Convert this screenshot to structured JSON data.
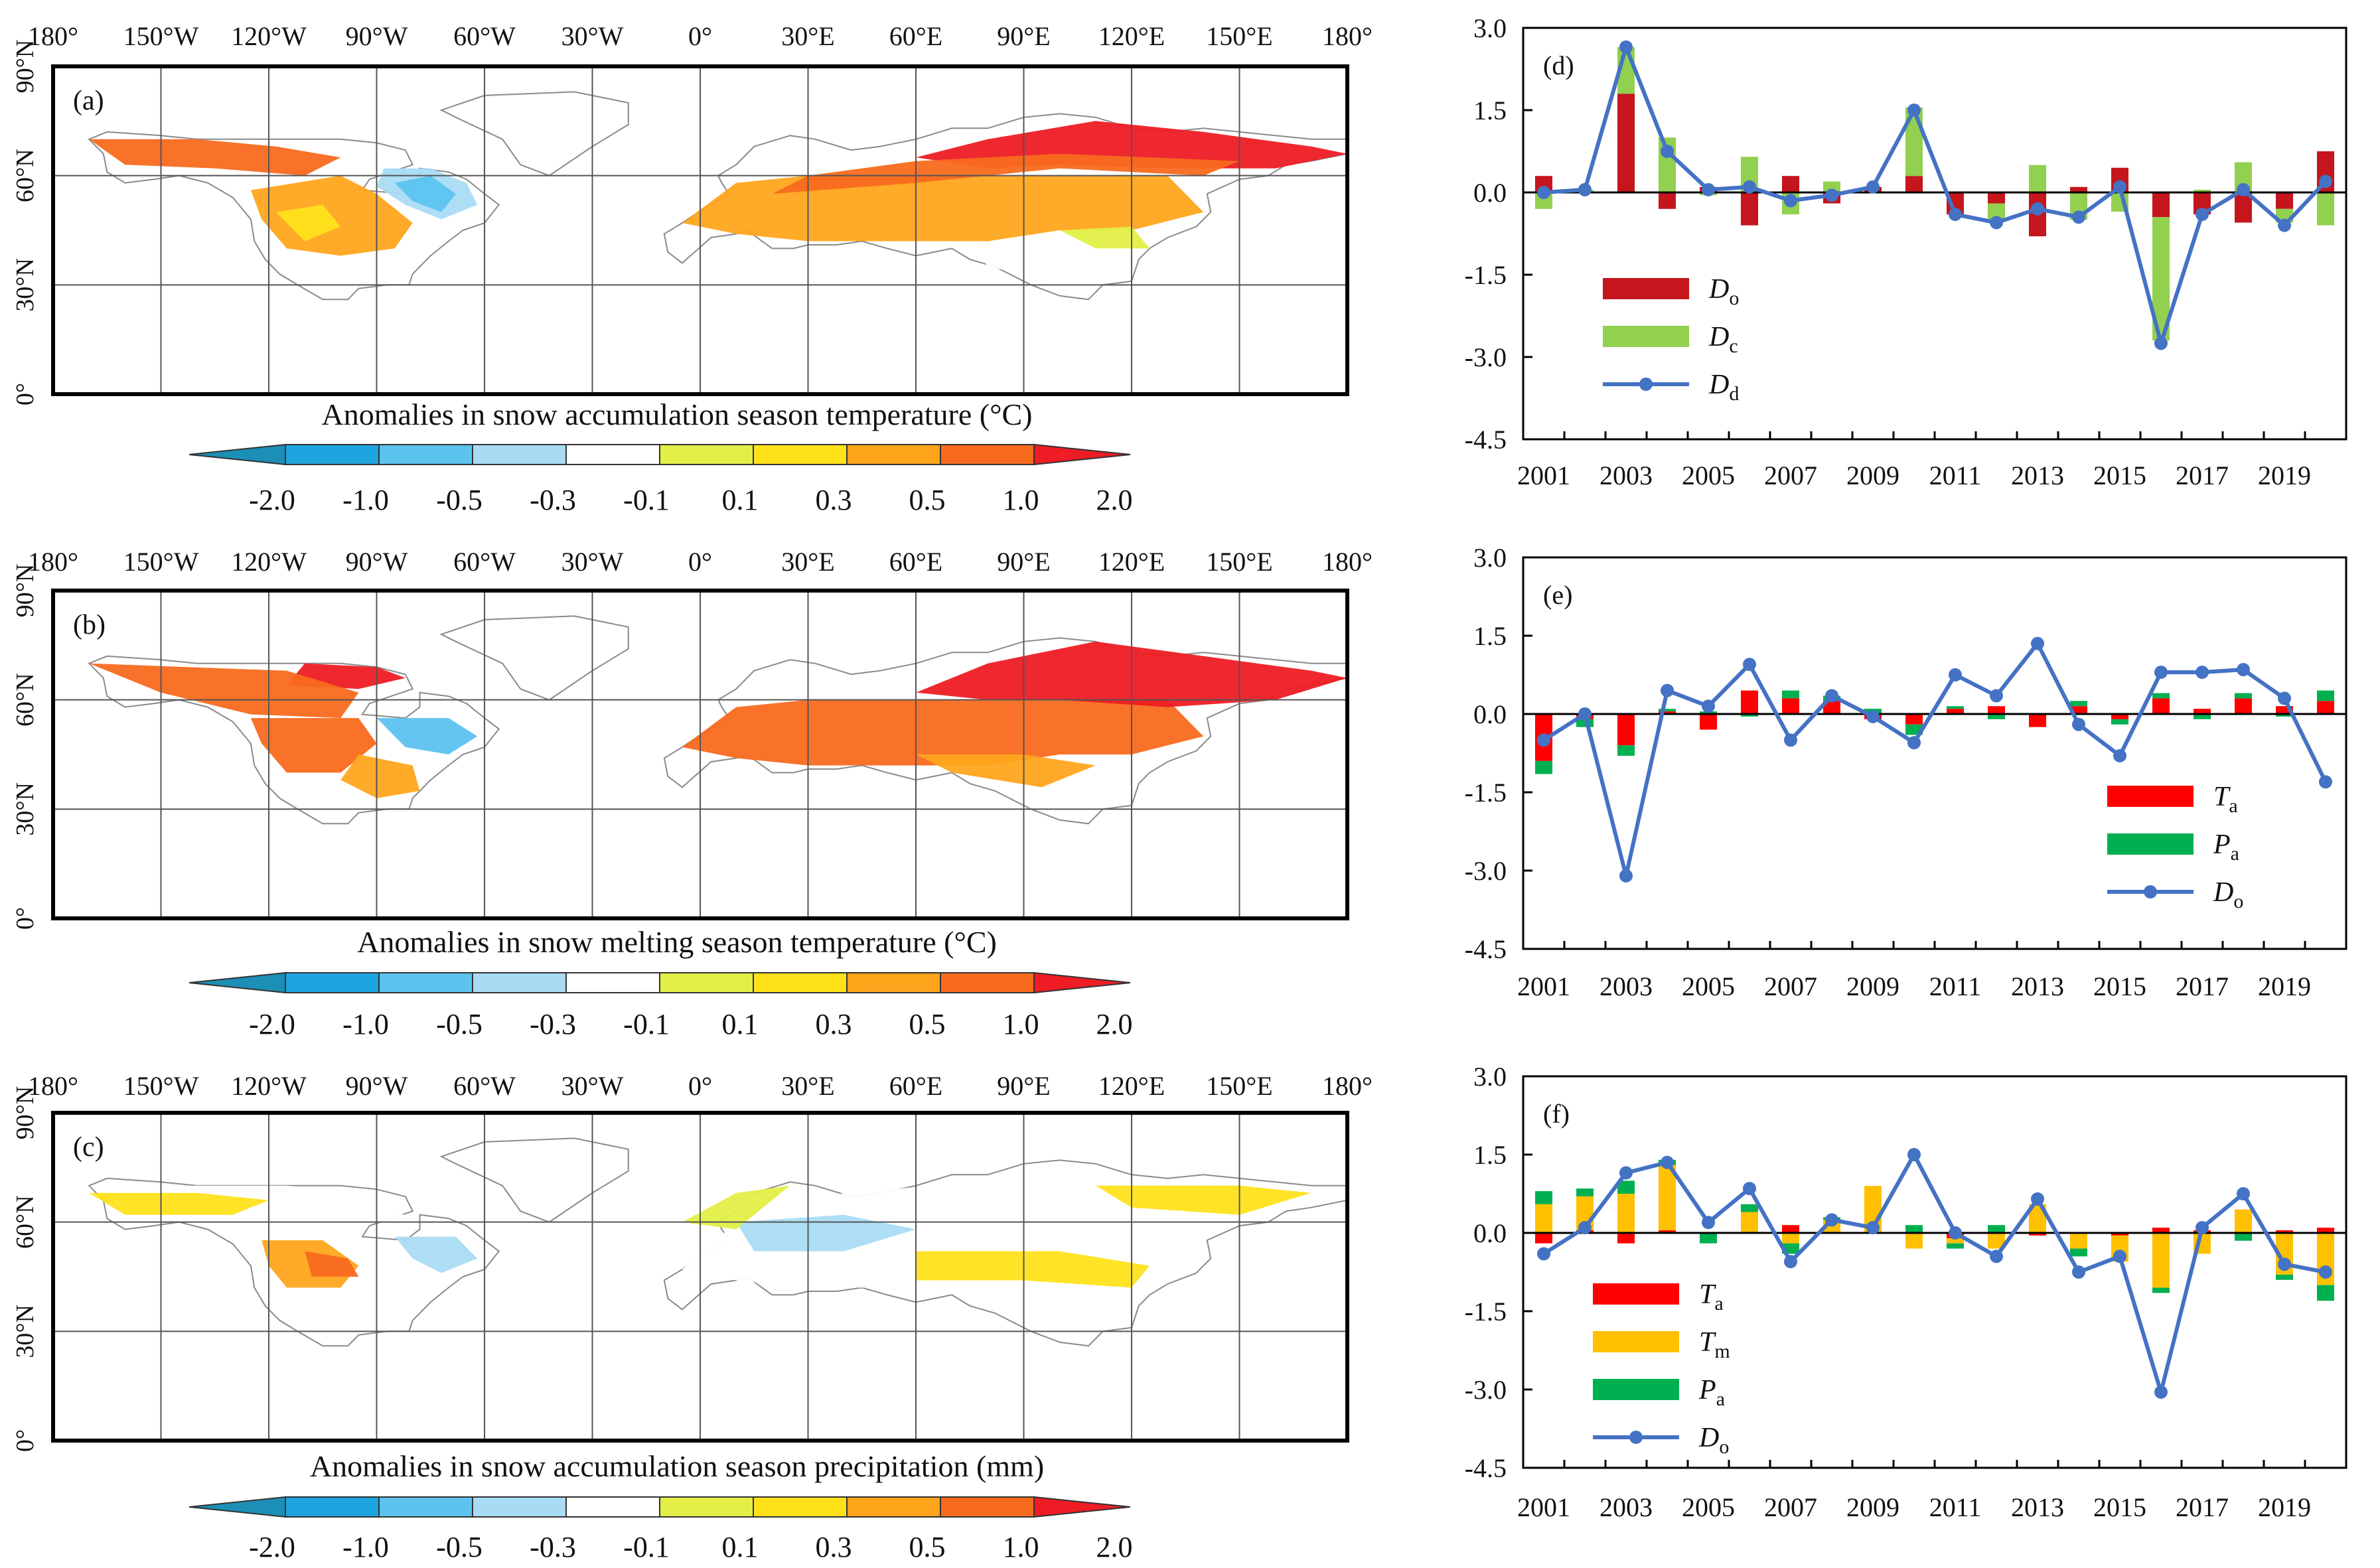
{
  "colors": {
    "temp_scale": [
      "#1b8fb5",
      "#1ea5e0",
      "#5cc3ef",
      "#a9dcf4",
      "#ffffff",
      "#e3ef47",
      "#ffe11a",
      "#ffa51c",
      "#f86a1d",
      "#ee1c24"
    ],
    "ocean": "#ffffff",
    "land_edge": "#8a8a8a",
    "d_o_bar": "#c4161c",
    "d_c_bar": "#92d050",
    "line": "#4472c4",
    "ta_bar": "#ff0000",
    "pa_bar": "#00b050",
    "tm_bar": "#ffc000"
  },
  "maps": [
    {
      "panel": "(a)",
      "title": "Anomalies in snow accumulation season temperature (°C)",
      "lon_labels": [
        "180°",
        "150°W",
        "120°W",
        "90°W",
        "60°W",
        "30°W",
        "0°",
        "30°E",
        "60°E",
        "90°E",
        "120°E",
        "150°E",
        "180°"
      ],
      "lat_labels": [
        "90°N",
        "60°N",
        "30°N",
        "0°"
      ],
      "colorbar_labels": [
        "-2.0",
        "-1.0",
        "-0.5",
        "-0.3",
        "-0.1",
        "0.1",
        "0.3",
        "0.5",
        "1.0",
        "2.0"
      ]
    },
    {
      "panel": "(b)",
      "title": "Anomalies in snow melting season temperature (°C)",
      "lon_labels": [
        "180°",
        "150°W",
        "120°W",
        "90°W",
        "60°W",
        "30°W",
        "0°",
        "30°E",
        "60°E",
        "90°E",
        "120°E",
        "150°E",
        "180°"
      ],
      "lat_labels": [
        "90°N",
        "60°N",
        "30°N",
        "0°"
      ],
      "colorbar_labels": [
        "-2.0",
        "-1.0",
        "-0.5",
        "-0.3",
        "-0.1",
        "0.1",
        "0.3",
        "0.5",
        "1.0",
        "2.0"
      ]
    },
    {
      "panel": "(c)",
      "title": "Anomalies in snow accumulation season precipitation (mm)",
      "lon_labels": [
        "180°",
        "150°W",
        "120°W",
        "90°W",
        "60°W",
        "30°W",
        "0°",
        "30°E",
        "60°E",
        "90°E",
        "120°E",
        "150°E",
        "180°"
      ],
      "lat_labels": [
        "90°N",
        "60°N",
        "30°N",
        "0°"
      ],
      "colorbar_labels": [
        "-2.0",
        "-1.0",
        "-0.5",
        "-0.3",
        "-0.1",
        "0.1",
        "0.3",
        "0.5",
        "1.0",
        "2.0"
      ]
    }
  ],
  "chart_data": [
    {
      "panel": "(d)",
      "type": "bar",
      "x": [
        2001,
        2002,
        2003,
        2004,
        2005,
        2006,
        2007,
        2008,
        2009,
        2010,
        2011,
        2012,
        2013,
        2014,
        2015,
        2016,
        2017,
        2018,
        2019,
        2020
      ],
      "x_tick_labels": [
        "2001",
        "2003",
        "2005",
        "2007",
        "2009",
        "2011",
        "2013",
        "2015",
        "2017",
        "2019"
      ],
      "y_tick_labels": [
        "3.0",
        "1.5",
        "0.0",
        "-1.5",
        "-3.0",
        "-4.5"
      ],
      "ylim": [
        -4.5,
        3.0
      ],
      "series": [
        {
          "name": "D",
          "sub": "o",
          "kind": "bar",
          "color_key": "d_o_bar",
          "values": [
            0.3,
            0.0,
            1.8,
            -0.3,
            0.1,
            -0.6,
            0.3,
            -0.2,
            0.1,
            0.3,
            -0.4,
            -0.2,
            -0.8,
            0.1,
            0.45,
            -0.45,
            -0.4,
            -0.55,
            -0.3,
            0.75
          ]
        },
        {
          "name": "D",
          "sub": "c",
          "kind": "bar",
          "color_key": "d_c_bar",
          "values": [
            -0.3,
            0.05,
            0.85,
            1.0,
            -0.05,
            0.65,
            -0.4,
            0.2,
            0.0,
            1.25,
            0.0,
            -0.3,
            0.5,
            -0.5,
            -0.35,
            -2.25,
            0.05,
            0.55,
            -0.25,
            -0.6
          ]
        },
        {
          "name": "D",
          "sub": "d",
          "kind": "line",
          "color_key": "line",
          "values": [
            0.0,
            0.05,
            2.65,
            0.75,
            0.05,
            0.1,
            -0.15,
            -0.05,
            0.1,
            1.5,
            -0.4,
            -0.55,
            -0.3,
            -0.45,
            0.1,
            -2.75,
            -0.4,
            0.05,
            -0.6,
            0.2
          ]
        }
      ],
      "legend": "bottom-left"
    },
    {
      "panel": "(e)",
      "type": "bar",
      "x": [
        2001,
        2002,
        2003,
        2004,
        2005,
        2006,
        2007,
        2008,
        2009,
        2010,
        2011,
        2012,
        2013,
        2014,
        2015,
        2016,
        2017,
        2018,
        2019,
        2020
      ],
      "x_tick_labels": [
        "2001",
        "2003",
        "2005",
        "2007",
        "2009",
        "2011",
        "2013",
        "2015",
        "2017",
        "2019"
      ],
      "y_tick_labels": [
        "3.0",
        "1.5",
        "0.0",
        "-1.5",
        "-3.0",
        "-4.5"
      ],
      "ylim": [
        -4.5,
        3.0
      ],
      "series": [
        {
          "name": "T",
          "sub": "a",
          "kind": "bar",
          "color_key": "ta_bar",
          "values": [
            -0.9,
            -0.1,
            -0.6,
            0.05,
            -0.3,
            0.45,
            0.3,
            0.25,
            -0.1,
            -0.2,
            0.1,
            0.15,
            -0.25,
            0.15,
            -0.1,
            0.3,
            0.1,
            0.3,
            0.15,
            0.25
          ]
        },
        {
          "name": "P",
          "sub": "a",
          "kind": "bar",
          "color_key": "pa_bar",
          "values": [
            -0.25,
            -0.15,
            -0.2,
            0.05,
            0.05,
            -0.05,
            0.15,
            0.1,
            0.1,
            -0.2,
            0.05,
            -0.1,
            0.0,
            0.1,
            -0.1,
            0.1,
            -0.1,
            0.1,
            -0.05,
            0.2
          ]
        },
        {
          "name": "D",
          "sub": "o",
          "kind": "line",
          "color_key": "line",
          "values": [
            -0.5,
            0.0,
            -3.1,
            0.45,
            0.15,
            0.95,
            -0.5,
            0.35,
            -0.05,
            -0.55,
            0.75,
            0.35,
            1.35,
            -0.2,
            -0.8,
            0.8,
            0.8,
            0.85,
            0.3,
            -1.3
          ]
        }
      ],
      "legend": "bottom-right"
    },
    {
      "panel": "(f)",
      "type": "bar",
      "x": [
        2001,
        2002,
        2003,
        2004,
        2005,
        2006,
        2007,
        2008,
        2009,
        2010,
        2011,
        2012,
        2013,
        2014,
        2015,
        2016,
        2017,
        2018,
        2019,
        2020
      ],
      "x_tick_labels": [
        "2001",
        "2003",
        "2005",
        "2007",
        "2009",
        "2011",
        "2013",
        "2015",
        "2017",
        "2019"
      ],
      "y_tick_labels": [
        "3.0",
        "1.5",
        "0.0",
        "-1.5",
        "-3.0",
        "-4.5"
      ],
      "ylim": [
        -4.5,
        3.0
      ],
      "series": [
        {
          "name": "T",
          "sub": "a",
          "kind": "bar",
          "color_key": "ta_bar",
          "values": [
            -0.2,
            0.05,
            -0.2,
            0.05,
            0.0,
            0.0,
            0.15,
            0.0,
            0.0,
            0.0,
            -0.1,
            0.0,
            -0.05,
            0.0,
            -0.05,
            0.1,
            0.05,
            0.0,
            0.05,
            0.1
          ]
        },
        {
          "name": "T",
          "sub": "m",
          "kind": "bar",
          "color_key": "tm_bar",
          "values": [
            0.55,
            0.65,
            0.75,
            1.25,
            0.0,
            0.4,
            -0.2,
            0.25,
            0.9,
            -0.3,
            -0.1,
            -0.3,
            0.55,
            -0.3,
            -0.5,
            -1.05,
            -0.4,
            0.45,
            -0.8,
            -1.0
          ]
        },
        {
          "name": "P",
          "sub": "a",
          "kind": "bar",
          "color_key": "pa_bar",
          "values": [
            0.25,
            0.15,
            0.25,
            0.1,
            -0.2,
            0.15,
            -0.2,
            0.05,
            0.0,
            0.15,
            -0.1,
            0.15,
            0.0,
            -0.15,
            0.0,
            -0.1,
            0.0,
            -0.15,
            -0.1,
            -0.3
          ]
        },
        {
          "name": "D",
          "sub": "o",
          "kind": "line",
          "color_key": "line",
          "values": [
            -0.4,
            0.1,
            1.15,
            1.35,
            0.2,
            0.85,
            -0.55,
            0.25,
            0.1,
            1.5,
            0.0,
            -0.45,
            0.65,
            -0.75,
            -0.45,
            -3.05,
            0.1,
            0.75,
            -0.6,
            -0.75
          ]
        }
      ],
      "legend": "bottom-left"
    }
  ]
}
